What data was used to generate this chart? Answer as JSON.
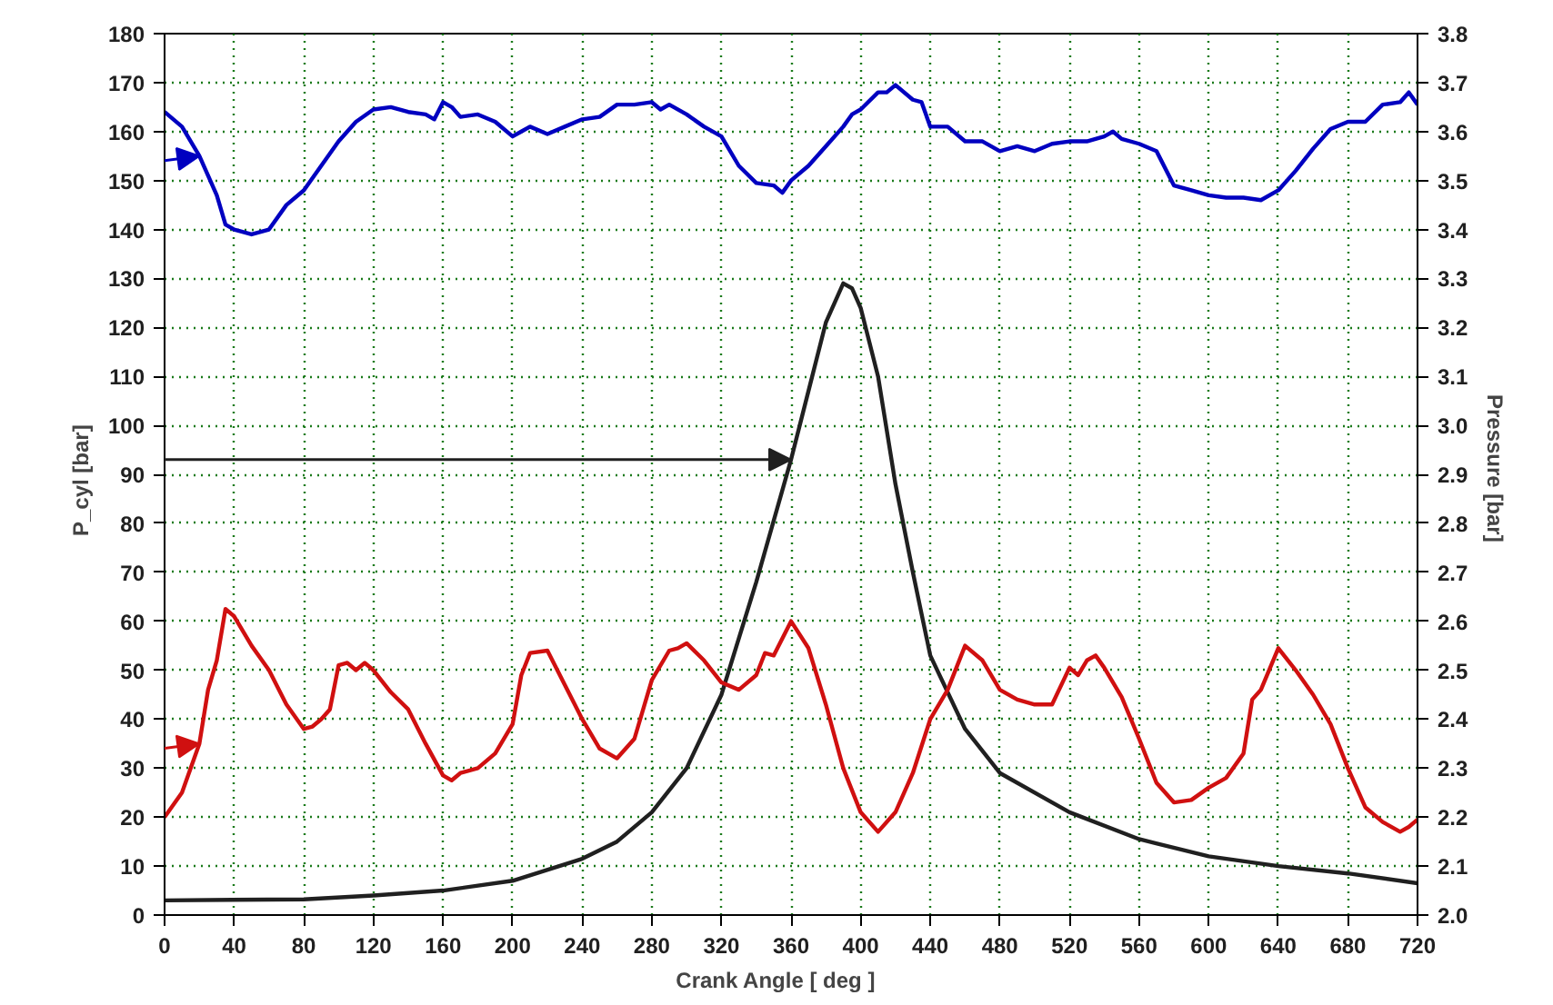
{
  "chart_data": {
    "type": "line",
    "xlabel": "Crank  Angle     [ deg ]",
    "ylabel": "P_cyl   [bar]",
    "y2label": "Pressure   [bar]",
    "xlim": [
      0,
      720
    ],
    "xticks": [
      0,
      40,
      80,
      120,
      160,
      200,
      240,
      280,
      320,
      360,
      400,
      440,
      480,
      520,
      560,
      600,
      640,
      680,
      720
    ],
    "ylim": [
      0,
      180
    ],
    "yticks": [
      0,
      10,
      20,
      30,
      40,
      50,
      60,
      70,
      80,
      90,
      100,
      110,
      120,
      130,
      140,
      150,
      160,
      170,
      180
    ],
    "y2lim": [
      2.0,
      3.8
    ],
    "y2ticks": [
      {
        "value": 2.0,
        "label": "2.0"
      },
      2.1,
      2.2,
      2.3,
      2.4,
      2.5,
      2.6,
      2.7,
      2.8,
      2.9,
      {
        "value": 3.0,
        "label": "3.0"
      },
      3.1,
      3.2,
      3.3,
      3.4,
      3.5,
      3.6,
      3.7,
      3.8
    ],
    "grid": true,
    "line_style": "solid",
    "marker": "none",
    "series": [
      {
        "color": "#0000c0",
        "axis": "y2",
        "x": [
          0,
          10,
          20,
          30,
          35,
          40,
          50,
          60,
          70,
          80,
          90,
          100,
          110,
          120,
          130,
          140,
          150,
          155,
          160,
          165,
          170,
          180,
          190,
          200,
          205,
          210,
          220,
          230,
          240,
          250,
          260,
          270,
          280,
          285,
          290,
          300,
          310,
          320,
          330,
          340,
          350,
          355,
          360,
          370,
          380,
          390,
          395,
          400,
          410,
          415,
          420,
          430,
          435,
          440,
          450,
          460,
          470,
          480,
          490,
          500,
          510,
          520,
          530,
          540,
          545,
          550,
          560,
          570,
          580,
          590,
          600,
          610,
          620,
          630,
          640,
          650,
          660,
          670,
          680,
          690,
          700,
          710,
          715,
          720
        ],
        "values": [
          3.64,
          3.61,
          3.55,
          3.47,
          3.41,
          3.4,
          3.39,
          3.4,
          3.45,
          3.48,
          3.53,
          3.58,
          3.62,
          3.645,
          3.65,
          3.64,
          3.635,
          3.625,
          3.66,
          3.65,
          3.63,
          3.635,
          3.62,
          3.59,
          3.6,
          3.61,
          3.595,
          3.61,
          3.625,
          3.63,
          3.655,
          3.655,
          3.66,
          3.645,
          3.655,
          3.635,
          3.61,
          3.59,
          3.53,
          3.495,
          3.49,
          3.475,
          3.5,
          3.53,
          3.57,
          3.61,
          3.635,
          3.645,
          3.68,
          3.68,
          3.695,
          3.665,
          3.66,
          3.61,
          3.61,
          3.58,
          3.58,
          3.56,
          3.57,
          3.56,
          3.575,
          3.58,
          3.58,
          3.59,
          3.6,
          3.585,
          3.575,
          3.56,
          3.49,
          3.48,
          3.47,
          3.465,
          3.465,
          3.46,
          3.48,
          3.52,
          3.565,
          3.605,
          3.62,
          3.62,
          3.655,
          3.66,
          3.68,
          3.655
        ]
      },
      {
        "color": "#202020",
        "x": [
          0,
          80,
          120,
          160,
          200,
          240,
          260,
          280,
          300,
          320,
          340,
          360,
          370,
          380,
          390,
          395,
          400,
          410,
          420,
          430,
          440,
          460,
          480,
          520,
          560,
          600,
          640,
          680,
          720
        ],
        "values": [
          3,
          3.2,
          4,
          5,
          7,
          11.5,
          15,
          21,
          30,
          45,
          68,
          93,
          107,
          121,
          129,
          128,
          124,
          110,
          88,
          70,
          53,
          38,
          29,
          21,
          15.5,
          12,
          10,
          8.5,
          6.5
        ]
      },
      {
        "color": "#d01010",
        "axis": "y2",
        "x": [
          0,
          10,
          20,
          25,
          30,
          35,
          40,
          50,
          60,
          70,
          80,
          85,
          90,
          95,
          100,
          105,
          110,
          115,
          120,
          130,
          140,
          150,
          160,
          165,
          170,
          180,
          190,
          200,
          205,
          210,
          220,
          230,
          240,
          250,
          260,
          270,
          280,
          290,
          295,
          300,
          310,
          320,
          330,
          340,
          345,
          350,
          360,
          370,
          380,
          390,
          400,
          410,
          420,
          430,
          440,
          450,
          460,
          470,
          480,
          490,
          500,
          510,
          520,
          525,
          530,
          535,
          540,
          550,
          560,
          570,
          580,
          590,
          600,
          610,
          620,
          625,
          630,
          640,
          650,
          660,
          670,
          680,
          690,
          700,
          710,
          715,
          720
        ],
        "values": [
          2.2,
          2.25,
          2.35,
          2.46,
          2.52,
          2.625,
          2.61,
          2.55,
          2.5,
          2.43,
          2.38,
          2.385,
          2.4,
          2.42,
          2.51,
          2.515,
          2.5,
          2.515,
          2.5,
          2.455,
          2.42,
          2.35,
          2.285,
          2.275,
          2.29,
          2.3,
          2.33,
          2.39,
          2.49,
          2.535,
          2.54,
          2.47,
          2.4,
          2.34,
          2.32,
          2.36,
          2.48,
          2.54,
          2.545,
          2.555,
          2.52,
          2.475,
          2.46,
          2.49,
          2.535,
          2.53,
          2.6,
          2.545,
          2.43,
          2.3,
          2.21,
          2.17,
          2.21,
          2.29,
          2.4,
          2.46,
          2.55,
          2.52,
          2.46,
          2.44,
          2.43,
          2.43,
          2.505,
          2.49,
          2.52,
          2.53,
          2.505,
          2.445,
          2.36,
          2.27,
          2.23,
          2.235,
          2.26,
          2.28,
          2.33,
          2.44,
          2.46,
          2.545,
          2.5,
          2.45,
          2.39,
          2.3,
          2.22,
          2.19,
          2.17,
          2.18,
          2.195
        ]
      }
    ]
  }
}
